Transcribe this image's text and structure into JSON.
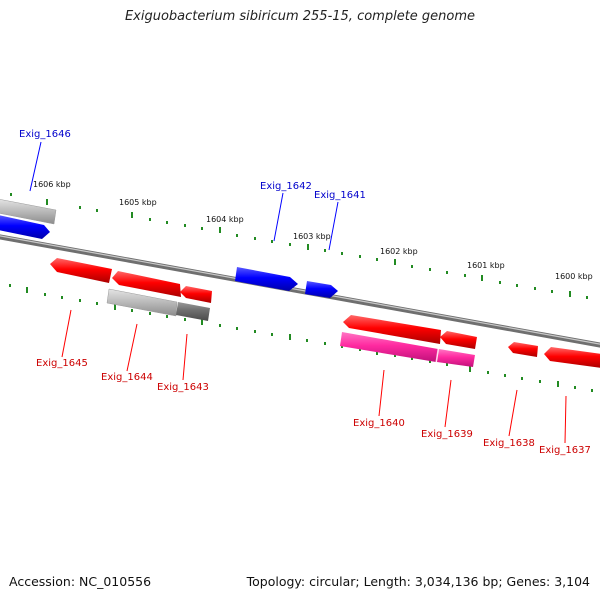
{
  "title": "Exiguobacterium sibiricum 255-15, complete genome",
  "footer": {
    "accession": "Accession: NC_010556",
    "summary": "Topology: circular; Length: 3,034,136 bp; Genes: 3,104"
  },
  "scale_labels": [
    "1606 kbp",
    "1605 kbp",
    "1604 kbp",
    "1603 kbp",
    "1602 kbp",
    "1601 kbp",
    "1600 kbp"
  ],
  "genes": {
    "forward": [
      "Exig_1646",
      "Exig_1642",
      "Exig_1641"
    ],
    "reverse": [
      "Exig_1645",
      "Exig_1644",
      "Exig_1643",
      "Exig_1640",
      "Exig_1639",
      "Exig_1638",
      "Exig_1637"
    ]
  },
  "colors": {
    "forward_gene": "#0000ff",
    "reverse_gene": "#ff0000",
    "rna_gene": "#ff33aa",
    "pseudo_gene": "#aaaaaa",
    "backbone": "#888888",
    "tick": "#228B22",
    "forward_label": "#0000cc",
    "reverse_label": "#cc0000"
  }
}
